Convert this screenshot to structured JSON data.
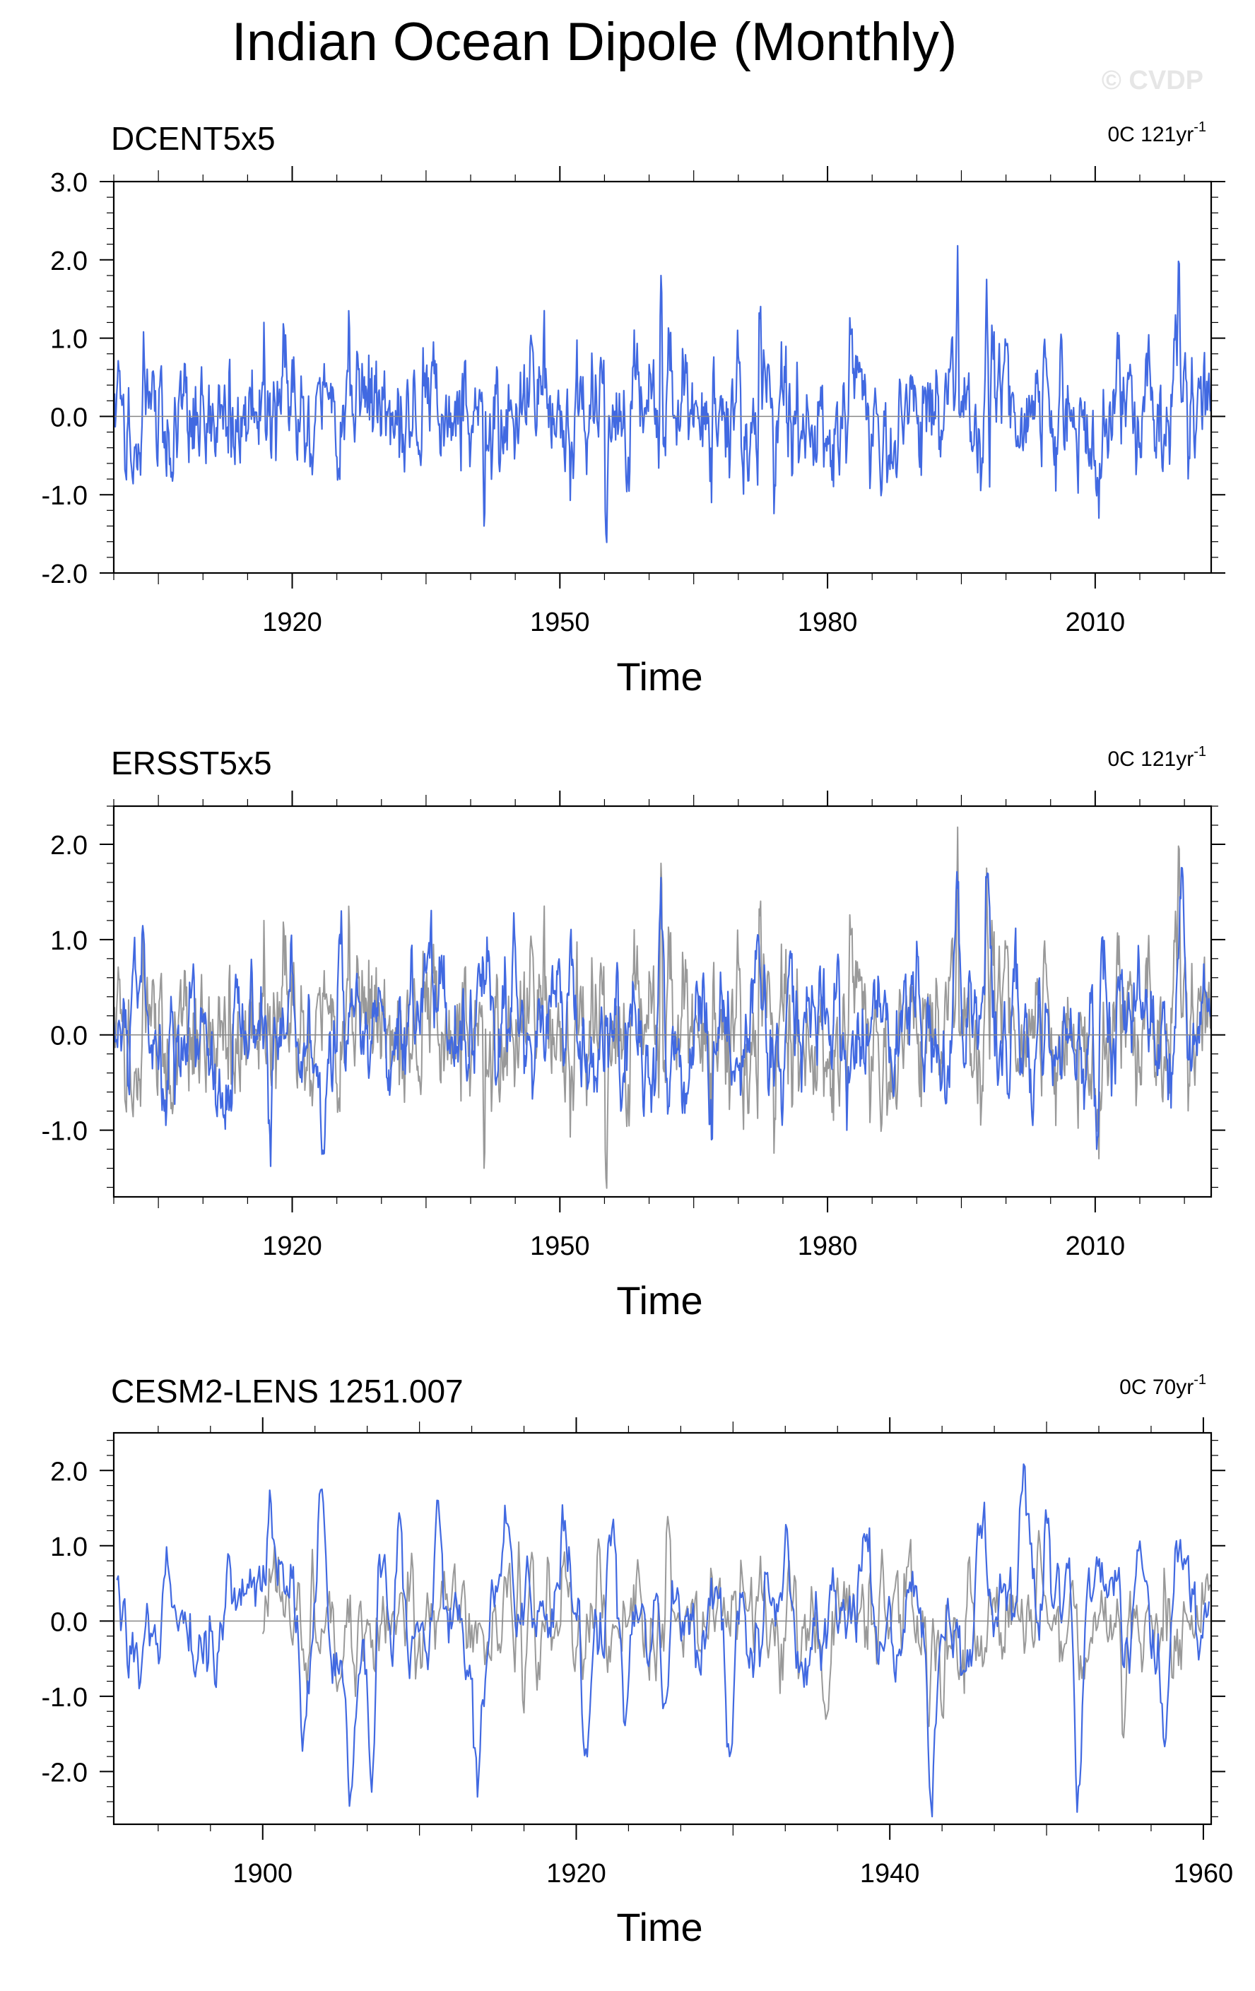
{
  "title": "Indian Ocean Dipole (Monthly)",
  "watermark": "© CVDP",
  "colors": {
    "primary": "#4169e1",
    "reference": "#999999",
    "frame": "#000000",
    "zero_line": "#888888"
  },
  "chart_data": [
    {
      "type": "line",
      "name": "DCENT5x5",
      "title": "DCENT5x5",
      "trend_label": "0C 121yr",
      "trend_sup": "-1",
      "xlabel": "Time",
      "ylabel": "",
      "xlim": [
        1900,
        2023
      ],
      "ylim": [
        -2.0,
        3.0
      ],
      "xticks": [
        1920,
        1950,
        1980,
        2010
      ],
      "xtick_labels": [
        "1920",
        "1950",
        "1980",
        "2010"
      ],
      "yticks": [
        -2.0,
        -1.0,
        0.0,
        1.0,
        2.0,
        3.0
      ],
      "ytick_labels": [
        "-2.0",
        "-1.0",
        "0.0",
        "1.0",
        "2.0",
        "3.0"
      ],
      "grid": false,
      "reference_line": 0,
      "series": [
        {
          "role": "primary",
          "x_start": 1900.0,
          "x_end": 2022.9,
          "seed": 11,
          "period": 0.25,
          "amplitude": 0.42,
          "peaks": [
            [
              1903.3,
              1.08
            ],
            [
              1916.8,
              1.2
            ],
            [
              1926.3,
              1.35
            ],
            [
              1935.8,
              0.95
            ],
            [
              1941.5,
              -1.4
            ],
            [
              1946.8,
              0.95
            ],
            [
              1955.2,
              -1.5
            ],
            [
              1961.3,
              1.8
            ],
            [
              1967.0,
              -1.1
            ],
            [
              1972.4,
              1.25
            ],
            [
              1982.6,
              1.05
            ],
            [
              1994.6,
              2.18
            ],
            [
              1997.8,
              1.75
            ],
            [
              1998.2,
              -0.9
            ],
            [
              2006.2,
              1.05
            ],
            [
              2010.4,
              -1.3
            ],
            [
              2019.4,
              1.95
            ]
          ]
        }
      ]
    },
    {
      "type": "line",
      "name": "ERSST5x5",
      "title": "ERSST5x5",
      "trend_label": "0C 121yr",
      "trend_sup": "-1",
      "xlabel": "Time",
      "ylabel": "",
      "xlim": [
        1900,
        2023
      ],
      "ylim": [
        -1.7,
        2.4
      ],
      "xticks": [
        1920,
        1950,
        1980,
        2010
      ],
      "xtick_labels": [
        "1920",
        "1950",
        "1980",
        "2010"
      ],
      "yticks": [
        -1.0,
        0.0,
        1.0,
        2.0
      ],
      "ytick_labels": [
        "-1.0",
        "0.0",
        "1.0",
        "2.0"
      ],
      "grid": false,
      "reference_line": 0,
      "series": [
        {
          "role": "reference",
          "x_start": 1900.0,
          "x_end": 2022.9,
          "seed": 11,
          "period": 0.25,
          "amplitude": 0.42,
          "peaks": [
            [
              1903.3,
              1.08
            ],
            [
              1916.8,
              1.2
            ],
            [
              1926.3,
              1.35
            ],
            [
              1935.8,
              0.95
            ],
            [
              1941.5,
              -1.4
            ],
            [
              1946.8,
              0.95
            ],
            [
              1955.2,
              -1.5
            ],
            [
              1961.3,
              1.8
            ],
            [
              1967.0,
              -1.1
            ],
            [
              1972.4,
              1.25
            ],
            [
              1982.6,
              1.05
            ],
            [
              1994.6,
              2.18
            ],
            [
              1997.8,
              1.75
            ],
            [
              2010.4,
              -1.3
            ],
            [
              2019.4,
              1.95
            ]
          ]
        },
        {
          "role": "primary",
          "x_start": 1900.0,
          "x_end": 2022.9,
          "seed": 23,
          "period": 0.5,
          "amplitude": 0.4,
          "peaks": [
            [
              1903.2,
              1.05
            ],
            [
              1917.5,
              -1.05
            ],
            [
              1919.8,
              0.95
            ],
            [
              1925.5,
              1.3
            ],
            [
              1935.0,
              0.65
            ],
            [
              1944.8,
              1.28
            ],
            [
              1956.8,
              -0.8
            ],
            [
              1961.3,
              1.65
            ],
            [
              1967.0,
              -1.1
            ],
            [
              1972.2,
              1.05
            ],
            [
              1982.2,
              -1.0
            ],
            [
              1994.4,
              1.5
            ],
            [
              1997.8,
              1.65
            ],
            [
              2003.0,
              -0.95
            ],
            [
              2010.2,
              -1.2
            ],
            [
              2019.8,
              1.65
            ]
          ]
        }
      ]
    },
    {
      "type": "line",
      "name": "CESM2-LENS 1251.007",
      "title": "CESM2-LENS 1251.007",
      "trend_label": "0C 70yr",
      "trend_sup": "-1",
      "xlabel": "Time",
      "ylabel": "",
      "xlim": [
        1890.5,
        1960.5
      ],
      "ylim": [
        -2.7,
        2.5
      ],
      "xticks": [
        1900,
        1920,
        1940,
        1960
      ],
      "xtick_labels": [
        "1900",
        "1920",
        "1940",
        "1960"
      ],
      "yticks": [
        -2.0,
        -1.0,
        0.0,
        1.0,
        2.0
      ],
      "ytick_labels": [
        "-2.0",
        "-1.0",
        "0.0",
        "1.0",
        "2.0"
      ],
      "grid": false,
      "reference_line": 0,
      "series": [
        {
          "role": "reference",
          "x_start": 1900.0,
          "x_end": 1960.4,
          "seed": 41,
          "period": 0.25,
          "amplitude": 0.4,
          "peaks": [
            [
              1903.2,
              0.95
            ],
            [
              1905.9,
              -1.0
            ],
            [
              1909.5,
              0.9
            ],
            [
              1916.3,
              1.05
            ],
            [
              1921.5,
              0.95
            ],
            [
              1925.9,
              1.25
            ],
            [
              1933.6,
              0.8
            ],
            [
              1939.5,
              0.95
            ],
            [
              1942.5,
              -1.4
            ],
            [
              1943.3,
              -1.25
            ],
            [
              1949.5,
              1.2
            ],
            [
              1954.8,
              -1.5
            ],
            [
              1958.0,
              -0.75
            ]
          ]
        },
        {
          "role": "primary",
          "x_start": 1890.7,
          "x_end": 1960.4,
          "seed": 57,
          "period": 0.45,
          "amplitude": 0.42,
          "peaks": [
            [
              1890.9,
              0.32
            ],
            [
              1893.8,
              0.62
            ],
            [
              1897.0,
              -0.88
            ],
            [
              1900.5,
              1.56
            ],
            [
              1902.6,
              -1.5
            ],
            [
              1903.8,
              1.75
            ],
            [
              1905.6,
              -2.28
            ],
            [
              1907.0,
              -1.95
            ],
            [
              1908.8,
              1.35
            ],
            [
              1911.2,
              1.6
            ],
            [
              1913.6,
              -1.82
            ],
            [
              1915.5,
              1.3
            ],
            [
              1919.2,
              1.2
            ],
            [
              1920.6,
              -1.7
            ],
            [
              1922.4,
              1.35
            ],
            [
              1923.2,
              -1.2
            ],
            [
              1925.6,
              -1.1
            ],
            [
              1929.8,
              -1.8
            ],
            [
              1933.4,
              1.28
            ],
            [
              1938.5,
              1.15
            ],
            [
              1942.6,
              -2.4
            ],
            [
              1945.9,
              1.1
            ],
            [
              1948.6,
              2.05
            ],
            [
              1950.0,
              1.3
            ],
            [
              1952.0,
              -2.2
            ],
            [
              1953.2,
              0.85
            ],
            [
              1956.0,
              0.88
            ],
            [
              1957.6,
              -1.55
            ]
          ]
        }
      ]
    }
  ]
}
